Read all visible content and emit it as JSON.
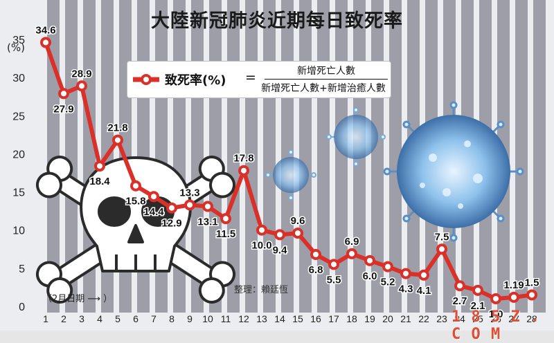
{
  "title": "大陸新冠肺炎近期每日致死率",
  "y_unit": "(%)",
  "formula": {
    "label": "致死率(%)",
    "equals": "=",
    "numerator": "新增死亡人數",
    "denominator": "新增死亡人數+新增治癒人數"
  },
  "x_note": "（2月日期 ⟶ ）",
  "credit": "整理：賴廷恆",
  "watermark": "1 8 5 Z . C O M",
  "colors": {
    "line": "#d9312a",
    "stripe_dark": "#9d9ea8",
    "stripe_light": "#ecedf0"
  },
  "chart_data": {
    "type": "line",
    "categories": [
      "1",
      "2",
      "3",
      "4",
      "5",
      "6",
      "7",
      "8",
      "9",
      "10",
      "11",
      "12",
      "13",
      "14",
      "15",
      "16",
      "17",
      "18",
      "19",
      "20",
      "21",
      "22",
      "23",
      "24",
      "25",
      "26",
      "27",
      "28"
    ],
    "values": [
      34.6,
      27.9,
      28.9,
      18.4,
      21.8,
      15.8,
      14.4,
      12.9,
      13.3,
      13.1,
      11.5,
      17.8,
      10.0,
      9.4,
      9.6,
      6.8,
      5.5,
      6.9,
      6.0,
      5.2,
      4.3,
      4.1,
      7.5,
      2.7,
      2.1,
      1.0,
      1.19,
      1.5
    ],
    "value_labels": [
      "34.6",
      "27.9",
      "28.9",
      "18.4",
      "21.8",
      "15.8",
      "14.4",
      "12.9",
      "13.3",
      "13.1",
      "11.5",
      "17.8",
      "10.0",
      "9.4",
      "9.6",
      "6.8",
      "5.5",
      "6.9",
      "6.0",
      "5.2",
      "4.3",
      "4.1",
      "7.5",
      "2.7",
      "2.1",
      "1.0",
      "1.19",
      "1.5"
    ],
    "ylim": [
      0,
      35
    ],
    "yticks": [
      "0",
      "5",
      "10",
      "15",
      "20",
      "25",
      "30",
      "35"
    ],
    "grid": false
  }
}
